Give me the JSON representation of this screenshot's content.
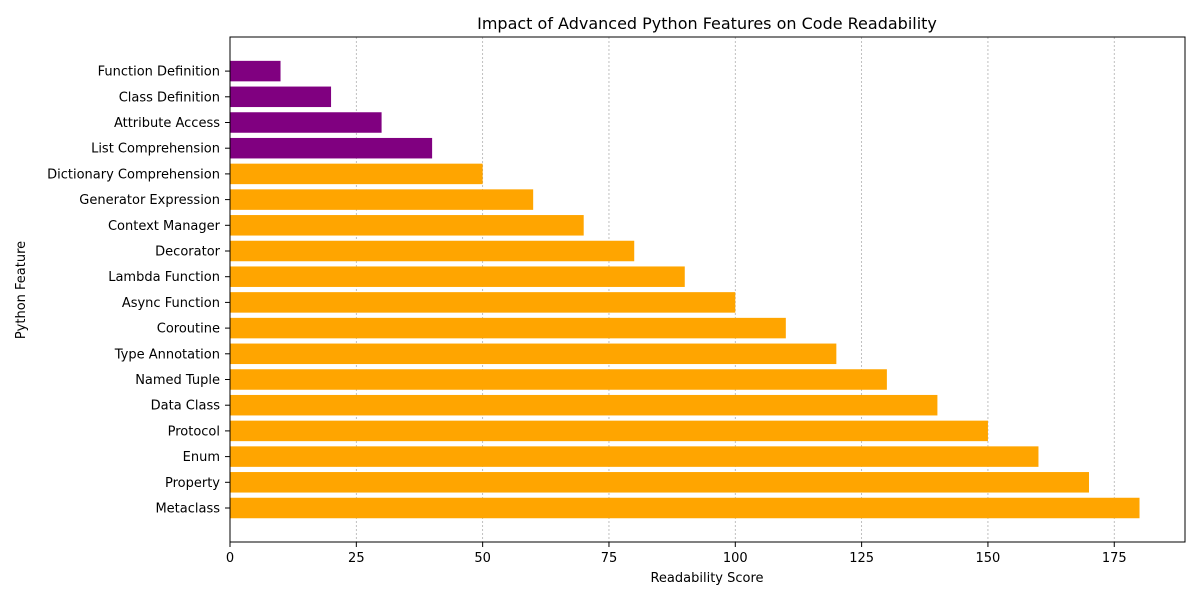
{
  "chart_data": {
    "type": "bar",
    "orientation": "horizontal",
    "title": "Impact of Advanced Python Features on Code Readability",
    "xlabel": "Readability Score",
    "ylabel": "Python Feature",
    "categories": [
      "Metaclass",
      "Property",
      "Enum",
      "Protocol",
      "Data Class",
      "Named Tuple",
      "Type Annotation",
      "Coroutine",
      "Async Function",
      "Lambda Function",
      "Decorator",
      "Context Manager",
      "Generator Expression",
      "Dictionary Comprehension",
      "List Comprehension",
      "Attribute Access",
      "Class Definition",
      "Function Definition"
    ],
    "values": [
      180,
      170,
      160,
      150,
      140,
      130,
      120,
      110,
      100,
      90,
      80,
      70,
      60,
      50,
      40,
      30,
      20,
      10
    ],
    "bar_colors": [
      "#ffa500",
      "#ffa500",
      "#ffa500",
      "#ffa500",
      "#ffa500",
      "#ffa500",
      "#ffa500",
      "#ffa500",
      "#ffa500",
      "#ffa500",
      "#ffa500",
      "#ffa500",
      "#ffa500",
      "#ffa500",
      "#800080",
      "#800080",
      "#800080",
      "#800080"
    ],
    "xlim": [
      0,
      189
    ],
    "xticks": [
      0,
      25,
      50,
      75,
      100,
      125,
      150,
      175
    ],
    "grid": "x-dotted",
    "legend": "none"
  }
}
